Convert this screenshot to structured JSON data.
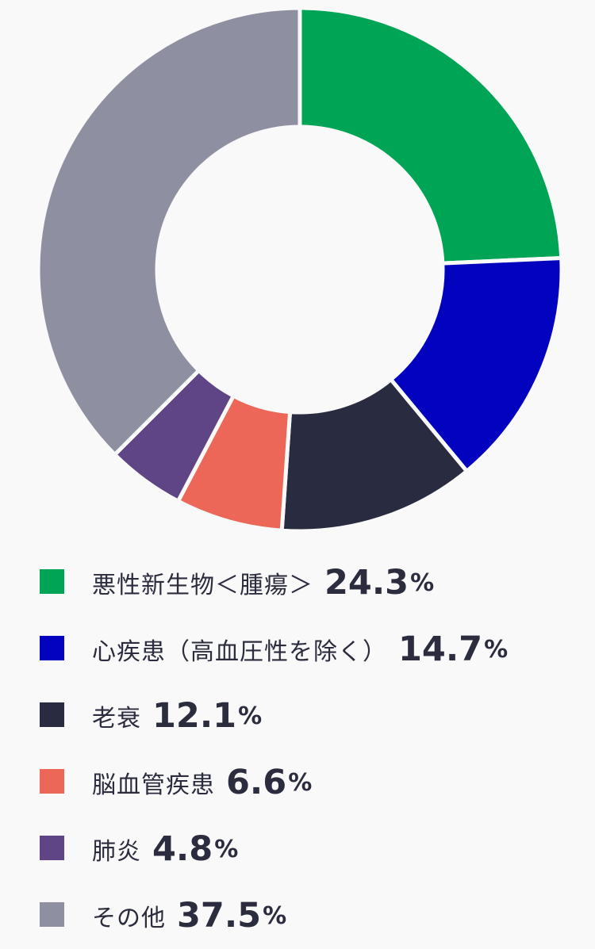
{
  "chart_data": {
    "type": "pie",
    "categories": [
      "悪性新生物＜腫瘍＞",
      "心疾患（高血圧性を除く）",
      "老衰",
      "脳血管疾患",
      "肺炎",
      "その他"
    ],
    "values": [
      24.3,
      14.7,
      12.1,
      6.6,
      4.8,
      37.5
    ],
    "unit": "%",
    "colors": [
      "#00a455",
      "#0303bf",
      "#292c40",
      "#ec6758",
      "#5f4486",
      "#8e8fa0"
    ],
    "donut": true,
    "start": "12 o'clock",
    "direction": "clockwise",
    "legend_position": "bottom",
    "title": ""
  }
}
